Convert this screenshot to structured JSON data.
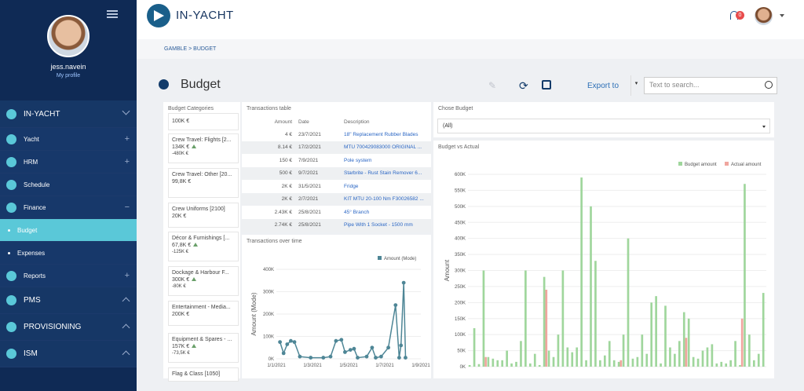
{
  "sidebar": {
    "username": "jess.navein",
    "profile_link": "My profile",
    "menu": [
      {
        "label": "IN-YACHT",
        "kind": "main",
        "expander": "chev-down",
        "icon": "logo-icon"
      },
      {
        "label": "Yacht",
        "kind": "sub",
        "expander": "+",
        "icon": "yacht-icon"
      },
      {
        "label": "HRM",
        "kind": "sub",
        "expander": "+",
        "icon": "people-icon"
      },
      {
        "label": "Schedule",
        "kind": "sub",
        "expander": "",
        "icon": "calendar-icon"
      },
      {
        "label": "Finance",
        "kind": "sub",
        "expander": "−",
        "icon": "folder-icon"
      },
      {
        "label": "Budget",
        "kind": "leaf-active",
        "expander": "",
        "icon": ""
      },
      {
        "label": "Expenses",
        "kind": "leaf",
        "expander": "",
        "icon": ""
      },
      {
        "label": "Reports",
        "kind": "sub",
        "expander": "+",
        "icon": "chart-icon"
      },
      {
        "label": "PMS",
        "kind": "main",
        "expander": "chev-up",
        "icon": "tools-icon"
      },
      {
        "label": "PROVISIONING",
        "kind": "main",
        "expander": "chev-up",
        "icon": "basket-icon"
      },
      {
        "label": "ISM",
        "kind": "main",
        "expander": "chev-up",
        "icon": "users-icon"
      }
    ]
  },
  "header": {
    "brand": "IN-YACHT",
    "notifications": "0"
  },
  "breadcrumb": "GAMBLE > BUDGET",
  "page": {
    "title": "Budget",
    "export_label": "Export to",
    "search_placeholder": "Text to search..."
  },
  "categories": {
    "title": "Budget Categories",
    "items": [
      {
        "name": "",
        "value": "100K €",
        "sub": "",
        "up": false
      },
      {
        "name": "Crew Travel: Flights [2...",
        "value": "134K €",
        "sub": "-480K €",
        "up": true
      },
      {
        "name": "Crew Travel: Other [20...",
        "value": "99,8K €",
        "sub": "",
        "up": false
      },
      {
        "name": "Crew Uniforms [2100]",
        "value": "20K €",
        "sub": "",
        "up": false
      },
      {
        "name": "Décor & Furnishings [...",
        "value": "67,8K €",
        "sub": "-125K €",
        "up": true
      },
      {
        "name": "Dockage & Harbour F...",
        "value": "300K €",
        "sub": "-80K €",
        "up": true
      },
      {
        "name": "Entertainment - Media...",
        "value": "200K €",
        "sub": "",
        "up": false
      },
      {
        "name": "Equipment & Spares - ...",
        "value": "157K €",
        "sub": "-73,5K €",
        "up": true
      },
      {
        "name": "Flag & Class [1050]",
        "value": "",
        "sub": "",
        "up": false
      }
    ]
  },
  "transactions": {
    "title": "Transactions table",
    "columns": [
      "Amount",
      "Date",
      "Description"
    ],
    "rows": [
      [
        "4 €",
        "23/7/2021",
        "18\" Replacement Rubber Blades"
      ],
      [
        "8.14 €",
        "17/2/2021",
        "MTU 700429083000 ORIGINAL ..."
      ],
      [
        "150 €",
        "7/9/2021",
        "Pole system"
      ],
      [
        "500 €",
        "9/7/2021",
        "Starbrite - Rust Stain Remover 6..."
      ],
      [
        "2K €",
        "31/5/2021",
        "Fridge"
      ],
      [
        "2K €",
        "2/7/2021",
        "KIT MTU 20-100 Nm F30026582 ..."
      ],
      [
        "2.43K €",
        "25/8/2021",
        "45° Branch"
      ],
      [
        "2.74K €",
        "25/8/2021",
        "Pipe With 1 Socket - 1500 mm"
      ]
    ]
  },
  "chose_budget": {
    "title": "Chose Budget",
    "selected": "(All)"
  },
  "chart_data": [
    {
      "type": "line",
      "title": "Transactions over time",
      "xlabel": "",
      "ylabel": "Amount (Mode)",
      "legend": "top-right",
      "x_ticks": [
        "1/1/2021",
        "1/3/2021",
        "1/5/2021",
        "1/7/2021",
        "1/9/2021"
      ],
      "y_ticks": [
        "0K",
        "100K",
        "200K",
        "300K",
        "400K"
      ],
      "ylim": [
        0,
        400000
      ],
      "series": [
        {
          "name": "Amount (Mode)",
          "color": "#4e8696",
          "points": [
            [
              0.2,
              75000
            ],
            [
              0.4,
              25000
            ],
            [
              0.6,
              65000
            ],
            [
              0.8,
              80000
            ],
            [
              1.0,
              75000
            ],
            [
              1.3,
              10000
            ],
            [
              1.9,
              5000
            ],
            [
              2.6,
              5000
            ],
            [
              3.0,
              10000
            ],
            [
              3.3,
              80000
            ],
            [
              3.6,
              85000
            ],
            [
              3.8,
              30000
            ],
            [
              4.1,
              40000
            ],
            [
              4.3,
              45000
            ],
            [
              4.5,
              5000
            ],
            [
              5.0,
              10000
            ],
            [
              5.3,
              50000
            ],
            [
              5.5,
              5000
            ],
            [
              5.8,
              10000
            ],
            [
              6.2,
              50000
            ],
            [
              6.6,
              240000
            ],
            [
              6.8,
              5000
            ],
            [
              6.9,
              60000
            ],
            [
              7.05,
              340000
            ],
            [
              7.15,
              5000
            ]
          ]
        }
      ]
    },
    {
      "type": "bar",
      "title": "Budget vs Actual",
      "ylabel": "Amount",
      "legend": "top-right",
      "y_ticks": [
        "0K",
        "50K",
        "100K",
        "150K",
        "200K",
        "250K",
        "300K",
        "350K",
        "400K",
        "450K",
        "500K",
        "550K",
        "600K"
      ],
      "ylim": [
        0,
        600000
      ],
      "series": [
        {
          "name": "Budget amount",
          "color": "#9fd69c"
        },
        {
          "name": "Actual amount",
          "color": "#f0a69f"
        }
      ],
      "budget": [
        5000,
        120000,
        8000,
        300000,
        30000,
        25000,
        20000,
        20000,
        50000,
        10000,
        15000,
        80000,
        300000,
        10000,
        40000,
        5000,
        280000,
        50000,
        30000,
        100000,
        300000,
        60000,
        45000,
        60000,
        590000,
        20000,
        500000,
        330000,
        20000,
        35000,
        80000,
        20000,
        15000,
        100000,
        400000,
        25000,
        30000,
        100000,
        40000,
        200000,
        220000,
        10000,
        190000,
        60000,
        40000,
        80000,
        170000,
        150000,
        30000,
        25000,
        50000,
        60000,
        70000,
        10000,
        15000,
        10000,
        20000,
        80000,
        5000,
        570000,
        100000,
        20000,
        40000,
        230000
      ],
      "actual": [
        0,
        0,
        0,
        30000,
        0,
        0,
        0,
        0,
        0,
        0,
        0,
        0,
        0,
        0,
        0,
        0,
        240000,
        0,
        0,
        0,
        0,
        0,
        0,
        0,
        0,
        0,
        0,
        0,
        0,
        0,
        0,
        0,
        20000,
        0,
        0,
        0,
        0,
        0,
        0,
        0,
        0,
        0,
        0,
        0,
        0,
        0,
        90000,
        0,
        0,
        0,
        0,
        0,
        0,
        0,
        0,
        0,
        0,
        0,
        150000,
        0,
        0,
        0,
        0,
        0
      ]
    }
  ]
}
